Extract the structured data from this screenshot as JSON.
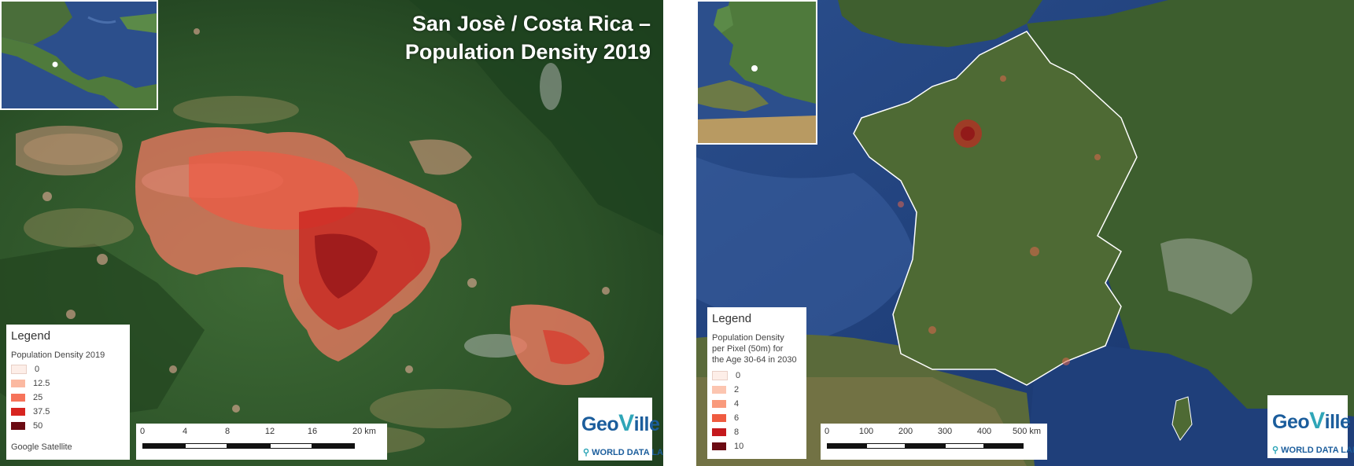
{
  "left_map": {
    "title_line1": "San Josè / Costa Rica –",
    "title_line2": "Population Density 2019",
    "legend": {
      "heading": "Legend",
      "subtitle": "Population Density 2019",
      "items": [
        {
          "label": "0",
          "color": "#fdeee8"
        },
        {
          "label": "12.5",
          "color": "#fbb9a1"
        },
        {
          "label": "25",
          "color": "#f6735a"
        },
        {
          "label": "37.5",
          "color": "#d7241f"
        },
        {
          "label": "50",
          "color": "#6b0a12"
        }
      ],
      "source": "Google Satellite"
    },
    "scale": {
      "ticks": [
        "0",
        "4",
        "8",
        "12",
        "16",
        "20 km"
      ]
    },
    "logo": {
      "geo": "Geo",
      "v": "V",
      "ille": "ille",
      "wdl": "WORLD DATA LAB"
    }
  },
  "right_map": {
    "legend": {
      "heading": "Legend",
      "subtitle": [
        "Population Density",
        "per Pixel (50m) for",
        "the Age 30-64 in 2030"
      ],
      "items": [
        {
          "label": "0",
          "color": "#fdeee8"
        },
        {
          "label": "2",
          "color": "#fcc5b0"
        },
        {
          "label": "4",
          "color": "#f99a7c"
        },
        {
          "label": "6",
          "color": "#ef5b40"
        },
        {
          "label": "8",
          "color": "#c4191d"
        },
        {
          "label": "10",
          "color": "#6b0a12"
        }
      ]
    },
    "scale": {
      "ticks": [
        "0",
        "100",
        "200",
        "300",
        "400",
        "500 km"
      ]
    },
    "logo": {
      "geo": "Geo",
      "v": "V",
      "ille": "ille",
      "wdl": "WORLD DATA LAB"
    }
  },
  "colors": {
    "forest_dark": "#1d3d1f",
    "forest_mid": "#2f5a2c",
    "sea": "#1f3f7a",
    "sea_light": "#4d70a8",
    "urban_red": "#e0392b",
    "border_white": "#ffffff",
    "brand_blue": "#1b5d9c",
    "brand_teal": "#2fa6b8"
  }
}
